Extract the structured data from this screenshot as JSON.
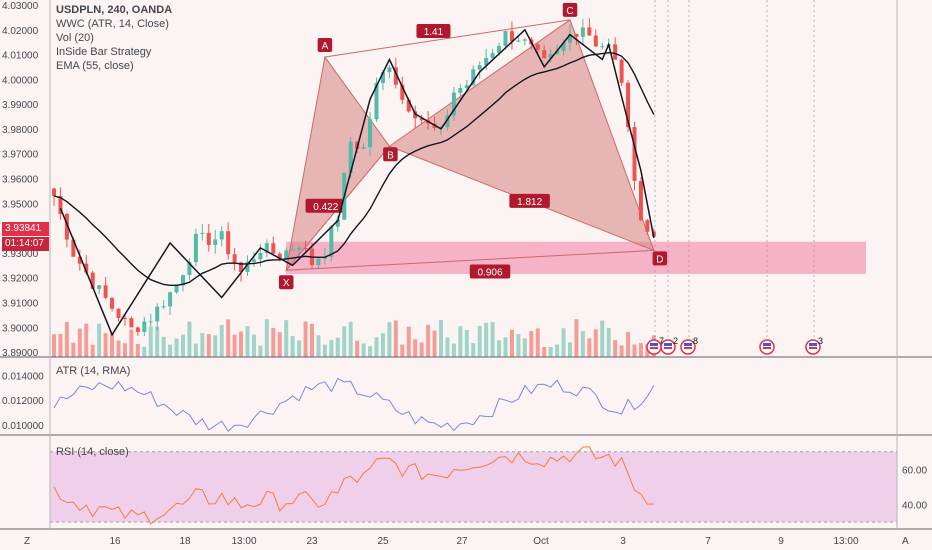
{
  "symbol_title": "USDPLN, 240, OANDA",
  "indicators": [
    "WWC (ATR, 14, Close)",
    "Vol (20)",
    "InSide Bar Strategy",
    "EMA (55, close)"
  ],
  "atr_label": "ATR (14, RMA)",
  "rsi_label": "RSI (14, close)",
  "last_price": "3.93841",
  "countdown": "01:14:07",
  "colors": {
    "bull": "#53b9a8",
    "bear": "#ef5350",
    "pattern_fill": "#d98a8a",
    "zone": "#f06292",
    "ema": "#131722",
    "atr": "#7b86e8",
    "rsi": "#f57c43",
    "rsi_band": "#e7b6e4"
  },
  "corner_labels": {
    "left": "Z",
    "right": "A"
  },
  "chart_data": [
    {
      "type": "candlestick",
      "title": "USDPLN, 240, OANDA",
      "ylim": [
        3.888,
        4.032
      ],
      "y_ticks": [
        "4.03000",
        "4.02000",
        "4.01000",
        "4.00000",
        "3.99000",
        "3.98000",
        "3.97000",
        "3.96000",
        "3.95000",
        "3.94000",
        "3.93000",
        "3.92000",
        "3.91000",
        "3.90000",
        "3.89000"
      ],
      "x_ticks": [
        "16",
        "18",
        "13:00",
        "23",
        "25",
        "27",
        "Oct",
        "3",
        "7",
        "9",
        "13:00"
      ],
      "harmonic_points": [
        {
          "label": "X",
          "value": 3.923
        },
        {
          "label": "A",
          "value": 4.009
        },
        {
          "label": "B",
          "value": 3.973
        },
        {
          "label": "C",
          "value": 4.024
        },
        {
          "label": "D",
          "value": 3.931
        }
      ],
      "ratios": [
        "0.422",
        "1.41",
        "1.812",
        "0.906"
      ],
      "prz_zone": [
        3.9215,
        3.9345
      ],
      "event_labels": [
        "7",
        "2",
        "8",
        "3"
      ]
    },
    {
      "type": "line",
      "title": "ATR (14, RMA)",
      "ylim": [
        0.0092,
        0.0154
      ],
      "y_ticks": [
        "0.014000",
        "0.012000",
        "0.010000"
      ]
    },
    {
      "type": "line",
      "title": "RSI (14, close)",
      "ylim": [
        26,
        79
      ],
      "y_ticks": [
        "60.00",
        "40.00"
      ],
      "band": [
        30,
        70
      ]
    }
  ]
}
